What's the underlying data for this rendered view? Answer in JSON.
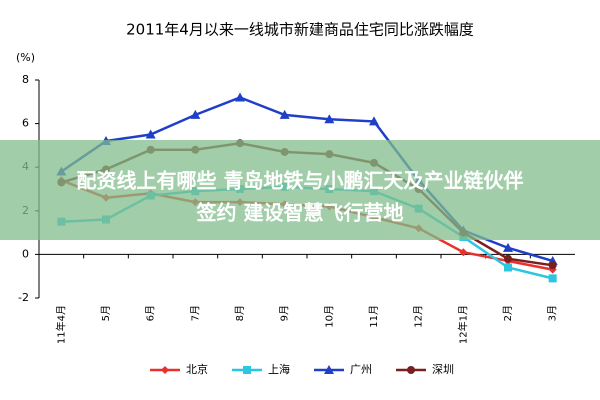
{
  "chart_data": {
    "type": "line",
    "title": "2011年4月以来一线城市新建商品住宅同比涨跌幅度",
    "y_label": "(%)",
    "categories": [
      "11年4月",
      "5月",
      "6月",
      "7月",
      "8月",
      "9月",
      "10月",
      "11月",
      "12月",
      "12年1月",
      "2月",
      "3月"
    ],
    "series": [
      {
        "name": "北京",
        "color": "#e8312c",
        "marker": "diamond",
        "values": [
          3.4,
          2.6,
          2.8,
          2.4,
          2.4,
          2.3,
          2.2,
          1.7,
          1.2,
          0.1,
          -0.3,
          -0.7
        ]
      },
      {
        "name": "上海",
        "color": "#2dc6e0",
        "marker": "square",
        "values": [
          1.5,
          1.6,
          2.7,
          2.9,
          3.0,
          3.1,
          3.0,
          2.9,
          2.1,
          0.8,
          -0.6,
          -1.1
        ]
      },
      {
        "name": "广州",
        "color": "#1f3fc8",
        "marker": "triangle",
        "values": [
          3.8,
          5.2,
          5.5,
          6.4,
          7.2,
          6.4,
          6.2,
          6.1,
          3.4,
          1.1,
          0.3,
          -0.3
        ]
      },
      {
        "name": "深圳",
        "color": "#7a1f1f",
        "marker": "circle",
        "values": [
          3.3,
          3.9,
          4.8,
          4.8,
          5.1,
          4.7,
          4.6,
          4.2,
          3.0,
          1.0,
          -0.2,
          -0.5
        ]
      }
    ],
    "ylim": [
      -2,
      8
    ],
    "yticks": [
      -2,
      0,
      2,
      4,
      6,
      8
    ],
    "annotations": [
      "配资线上有哪些 青岛地铁与小鹏汇天及产业链伙伴",
      "签约 建设智慧飞行营地"
    ]
  }
}
